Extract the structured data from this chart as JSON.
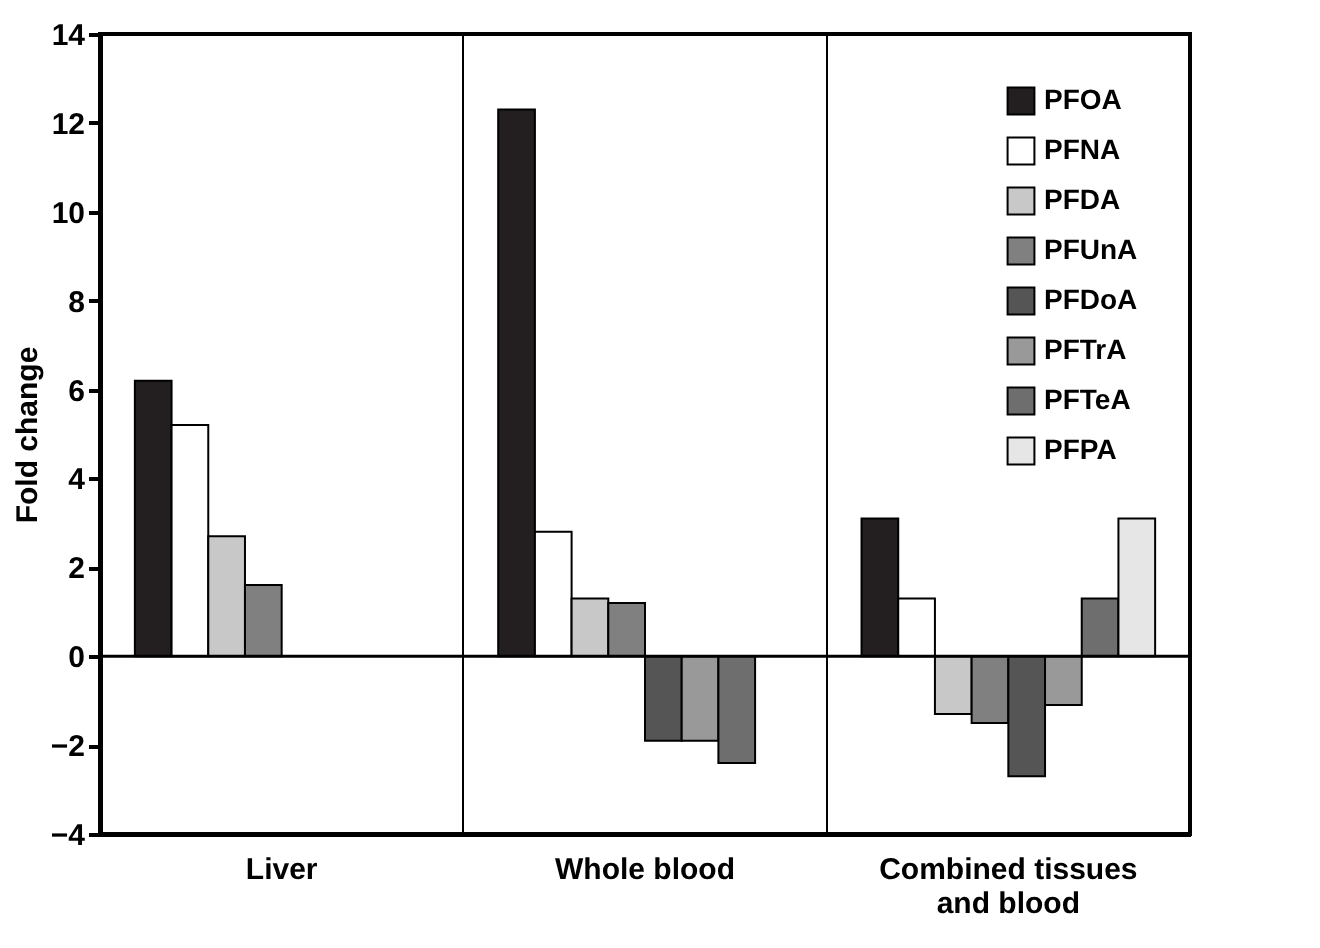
{
  "chart_data": {
    "type": "bar",
    "ylabel": "Fold change",
    "categories": [
      "Liver",
      "Whole blood",
      "Combined tissues and blood"
    ],
    "ylim": [
      -4,
      14
    ],
    "yticks": [
      -4,
      -2,
      0,
      2,
      4,
      6,
      8,
      10,
      12,
      14
    ],
    "grid": "x",
    "legend": "top right",
    "ref_lines": [
      {
        "axis": "y",
        "value": 0
      }
    ],
    "series": [
      {
        "name": "PFOA",
        "color": "#231f20",
        "values": [
          6.2,
          12.3,
          3.1
        ]
      },
      {
        "name": "PFNA",
        "color": "#ffffff",
        "values": [
          5.2,
          2.8,
          1.3
        ]
      },
      {
        "name": "PFDA",
        "color": "#c8c8c8",
        "values": [
          2.7,
          1.3,
          -1.3
        ]
      },
      {
        "name": "PFUnA",
        "color": "#808080",
        "values": [
          1.6,
          1.2,
          -1.5
        ]
      },
      {
        "name": "PFDoA",
        "color": "#555555",
        "values": [
          null,
          -1.9,
          -2.7
        ]
      },
      {
        "name": "PFTrA",
        "color": "#999999",
        "values": [
          null,
          -1.9,
          -1.1
        ]
      },
      {
        "name": "PFTeA",
        "color": "#6e6e6e",
        "values": [
          null,
          -2.4,
          1.3
        ]
      },
      {
        "name": "PFPA",
        "color": "#e6e6e6",
        "values": [
          null,
          null,
          3.1
        ]
      }
    ]
  }
}
